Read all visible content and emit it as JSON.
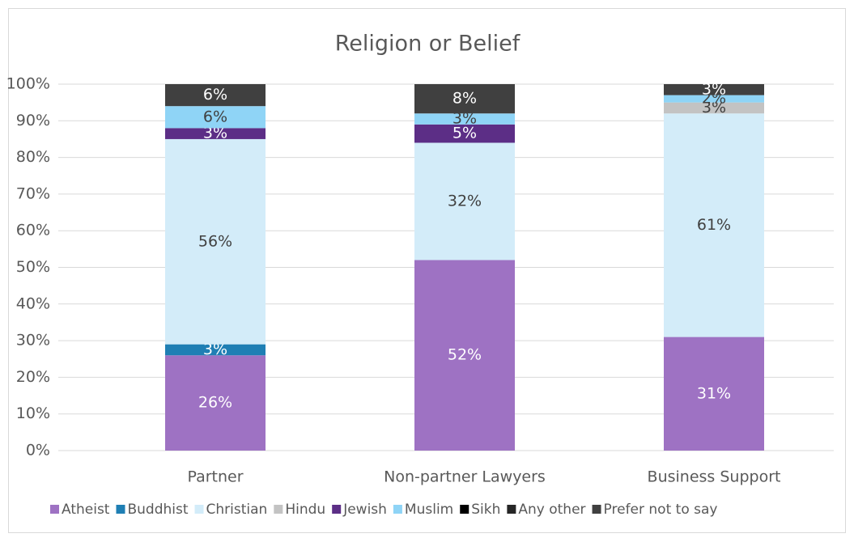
{
  "chart_data": {
    "type": "stacked_bar",
    "title": "Religion or Belief",
    "categories": [
      "Partner",
      "Non-partner Lawyers",
      "Business Support"
    ],
    "ylim": [
      0,
      100
    ],
    "yticks": [
      {
        "value": 0,
        "label": "0%"
      },
      {
        "value": 10,
        "label": "10%"
      },
      {
        "value": 20,
        "label": "20%"
      },
      {
        "value": 30,
        "label": "30%"
      },
      {
        "value": 40,
        "label": "40%"
      },
      {
        "value": 50,
        "label": "50%"
      },
      {
        "value": 60,
        "label": "60%"
      },
      {
        "value": 70,
        "label": "70%"
      },
      {
        "value": 80,
        "label": "80%"
      },
      {
        "value": 90,
        "label": "90%"
      },
      {
        "value": 100,
        "label": "100%"
      }
    ],
    "grid": true,
    "legend": "bottom",
    "series": [
      {
        "name": "Atheist",
        "color": "#9e72c3",
        "values": [
          26,
          52,
          31
        ],
        "value_labels": [
          "26%",
          "52%",
          "31%"
        ]
      },
      {
        "name": "Buddhist",
        "color": "#1f7fb4",
        "values": [
          3,
          0,
          0
        ],
        "value_labels": [
          "3%",
          null,
          null
        ]
      },
      {
        "name": "Christian",
        "color": "#d3ecf9",
        "values": [
          56,
          32,
          61
        ],
        "value_labels": [
          "56%",
          "32%",
          "61%"
        ]
      },
      {
        "name": "Hindu",
        "color": "#c3c3c3",
        "values": [
          0,
          0,
          3
        ],
        "value_labels": [
          null,
          null,
          "3%"
        ]
      },
      {
        "name": "Jewish",
        "color": "#5c2e86",
        "values": [
          3,
          5,
          0
        ],
        "value_labels": [
          "3%",
          "5%",
          null
        ]
      },
      {
        "name": "Muslim",
        "color": "#8fd4f6",
        "values": [
          6,
          3,
          2
        ],
        "value_labels": [
          "6%",
          "3%",
          "2%"
        ]
      },
      {
        "name": "Sikh",
        "color": "#000000",
        "values": [
          0,
          0,
          0
        ],
        "value_labels": [
          null,
          null,
          null
        ]
      },
      {
        "name": "Any other",
        "color": "#262626",
        "values": [
          0,
          0,
          0
        ],
        "value_labels": [
          null,
          null,
          null
        ]
      },
      {
        "name": "Prefer not to say",
        "color": "#404040",
        "values": [
          6,
          8,
          3
        ],
        "value_labels": [
          "6%",
          "8%",
          "3%"
        ]
      }
    ]
  }
}
